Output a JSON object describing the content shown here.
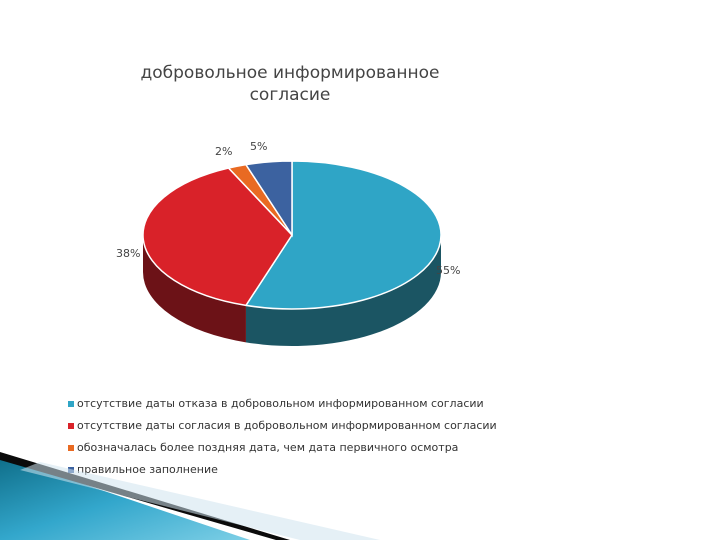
{
  "chart_data": {
    "type": "pie",
    "title": "добровольное информированное согласие",
    "categories": [
      "отсутствие даты отказа в добровольном информированном согласии",
      "отсутствие даты согласия в добровольном информированном согласии",
      "обозначалась более поздняя дата, чем дата первичного осмотра",
      "правильное заполнение"
    ],
    "values": [
      55,
      38,
      2,
      5
    ],
    "labels": [
      "55%",
      "38%",
      "2%",
      "5%"
    ],
    "colors": [
      "#2FA5C6",
      "#D92229",
      "#E96A22",
      "#3C62A0"
    ],
    "side_colors": [
      "#1B5563",
      "#6C1217",
      "#7A3510",
      "#1E3355"
    ],
    "legend_position": "bottom-left"
  }
}
